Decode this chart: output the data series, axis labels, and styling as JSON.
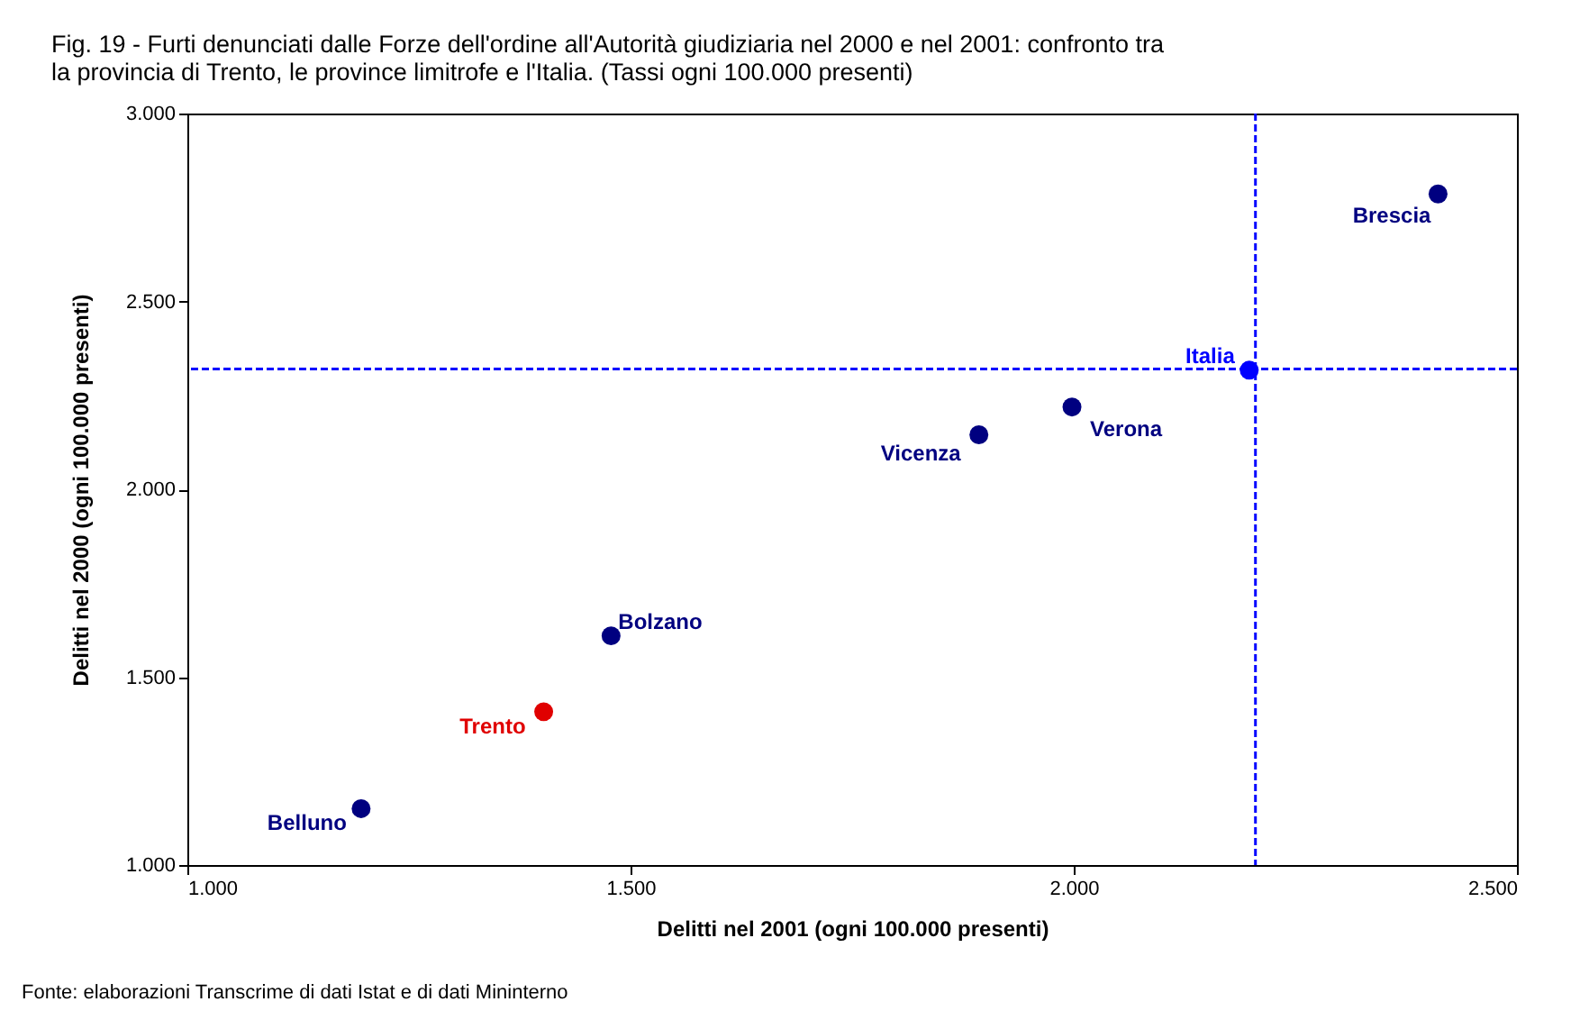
{
  "chart_data": {
    "type": "scatter",
    "title": "Fig. 19 - Furti denunciati dalle Forze dell'ordine all'Autorità giudiziaria nel 2000 e nel 2001: confronto tra la provincia di Trento, le province limitrofe e l'Italia. (Tassi ogni 100.000 presenti)",
    "xlabel": "Delitti nel 2001 (ogni 100.000 presenti)",
    "ylabel": "Delitti nel 2000 (ogni 100.000 presenti)",
    "series": [
      {
        "x": [
          1196,
          1402,
          1478,
          1893,
          1998,
          2198,
          2411
        ],
        "values": [
          1150,
          1408,
          1610,
          2145,
          2219,
          2317,
          2786
        ],
        "colors": [
          "#000080",
          "#e00000",
          "#000080",
          "#000080",
          "#000080",
          "#0000ff",
          "#000080"
        ]
      }
    ],
    "marker": "circle",
    "xlim": [
      1000,
      2500
    ],
    "xticks": [
      {
        "value": 1000,
        "label": "1.000"
      },
      {
        "value": 1500,
        "label": "1.500"
      },
      {
        "value": 2000,
        "label": "2.000"
      },
      {
        "value": 2500,
        "label": "2.500"
      }
    ],
    "ylim": [
      1000,
      3000
    ],
    "yticks": [
      {
        "value": 1000,
        "label": "1.000"
      },
      {
        "value": 1500,
        "label": "1.500"
      },
      {
        "value": 2000,
        "label": "2.000"
      },
      {
        "value": 2500,
        "label": "2.500"
      },
      {
        "value": 3000,
        "label": "3.000"
      }
    ],
    "grid": false,
    "ref_lines": [
      {
        "axis": "x",
        "value": 2205,
        "color": "#0000ff",
        "line_style": "dashed"
      },
      {
        "axis": "y",
        "value": 2320,
        "color": "#0000ff",
        "line_style": "dashed"
      }
    ],
    "annotations": [
      {
        "text": "Belluno",
        "x": 1196,
        "y": 1150
      },
      {
        "text": "Trento",
        "x": 1402,
        "y": 1408
      },
      {
        "text": "Bolzano",
        "x": 1478,
        "y": 1610
      },
      {
        "text": "Vicenza",
        "x": 1893,
        "y": 2145
      },
      {
        "text": "Verona",
        "x": 1998,
        "y": 2219
      },
      {
        "text": "Italia",
        "x": 2198,
        "y": 2317
      },
      {
        "text": "Brescia",
        "x": 2411,
        "y": 2786
      },
      "Fonte: elaborazioni Transcrime di dati Istat e di dati Mininterno"
    ]
  }
}
